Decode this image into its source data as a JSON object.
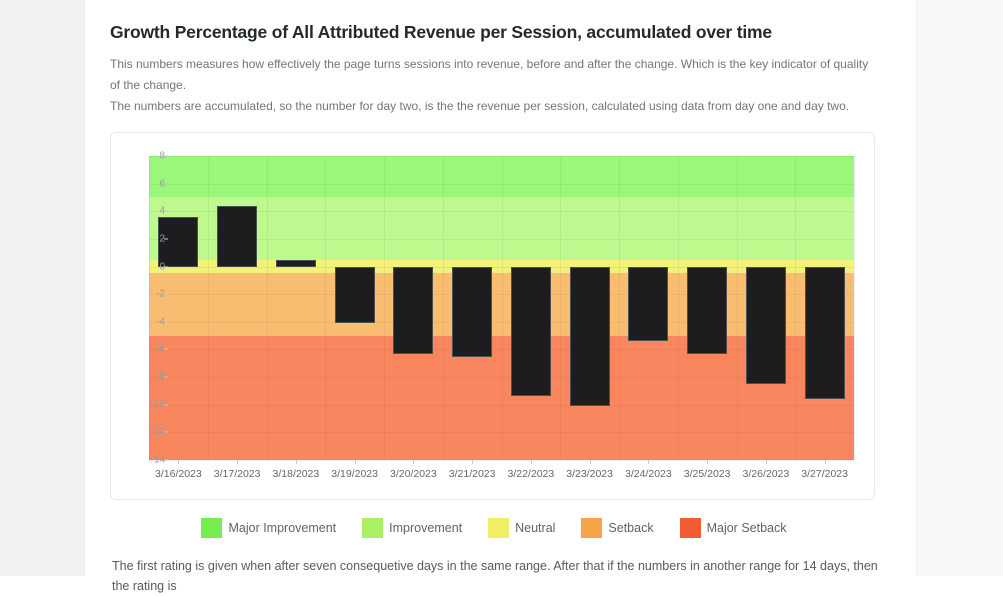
{
  "page": {
    "title": "Growth Percentage of All Attributed Revenue per Session, accumulated over time",
    "description_line1": "This numbers measures how effectively the page turns sessions into revenue, before and after the change. Which is the key indicator of quality of the change.",
    "description_line2": "The numbers are accumulated, so the number for day two, is the the revenue per session, calculated using data from day one and day two.",
    "footer_text": "The first rating is given when after seven consequetive days in the same range. After that if the numbers in another range for 14 days, then the rating is"
  },
  "chart_data": {
    "type": "bar",
    "title": "Growth Percentage of All Attributed Revenue per Session, accumulated over time",
    "categories": [
      "3/16/2023",
      "3/17/2023",
      "3/18/2023",
      "3/19/2023",
      "3/20/2023",
      "3/21/2023",
      "3/22/2023",
      "3/23/2023",
      "3/24/2023",
      "3/25/2023",
      "3/26/2023",
      "3/27/2023"
    ],
    "values": [
      3.6,
      4.35,
      0.5,
      -4.1,
      -6.3,
      -6.55,
      -9.4,
      -10.1,
      -5.4,
      -6.3,
      -8.5,
      -9.6
    ],
    "xlabel": "",
    "ylabel": "",
    "ylim": [
      -14,
      8
    ],
    "ytick_step": 2,
    "grid": true,
    "legend_position": "bottom",
    "bar_color": "#1d1d20",
    "bands": [
      {
        "label": "Major Improvement",
        "from": 5,
        "to": 8,
        "band_color": "#99f779",
        "legend_color": "#76ee50"
      },
      {
        "label": "Improvement",
        "from": 0.5,
        "to": 5,
        "band_color": "#bdf98c",
        "legend_color": "#a9f163"
      },
      {
        "label": "Neutral",
        "from": -0.5,
        "to": 0.5,
        "band_color": "#f1f277",
        "legend_color": "#f0ee62"
      },
      {
        "label": "Setback",
        "from": -5,
        "to": -0.5,
        "band_color": "#f9bd72",
        "legend_color": "#f6a44a"
      },
      {
        "label": "Major Setback",
        "from": -14,
        "to": -5,
        "band_color": "#f8875f",
        "legend_color": "#f25c35"
      }
    ]
  }
}
